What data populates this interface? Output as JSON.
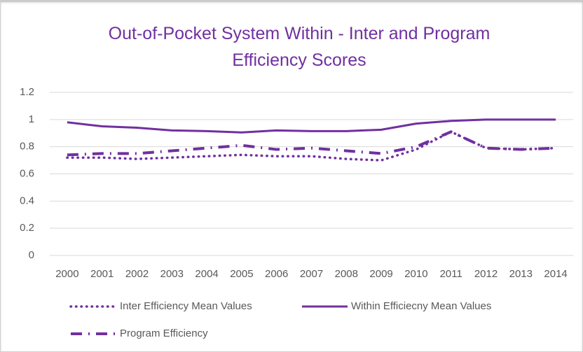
{
  "chart_data": {
    "type": "line",
    "title": "Out-of-Pocket System Within - Inter and Program Efficiency Scores",
    "categories": [
      "2000",
      "2001",
      "2002",
      "2003",
      "2004",
      "2005",
      "2006",
      "2007",
      "2008",
      "2009",
      "2010",
      "2011",
      "2012",
      "2013",
      "2014"
    ],
    "series": [
      {
        "name": "Inter Efficiency Mean Values",
        "color": "#7030a0",
        "line_style": "dotted",
        "values": [
          0.72,
          0.72,
          0.71,
          0.72,
          0.73,
          0.74,
          0.73,
          0.73,
          0.71,
          0.7,
          0.78,
          0.91,
          0.79,
          0.78,
          0.79
        ]
      },
      {
        "name": "Within Efficiecny Mean Values",
        "color": "#7030a0",
        "line_style": "solid",
        "values": [
          0.98,
          0.95,
          0.94,
          0.92,
          0.915,
          0.905,
          0.92,
          0.915,
          0.915,
          0.925,
          0.97,
          0.99,
          1.0,
          1.0,
          1.0
        ]
      },
      {
        "name": "Program Efficiency",
        "color": "#7030a0",
        "line_style": "dash-dot",
        "values": [
          0.74,
          0.75,
          0.75,
          0.77,
          0.79,
          0.81,
          0.78,
          0.79,
          0.77,
          0.75,
          0.8,
          0.91,
          0.79,
          0.78,
          0.79
        ]
      }
    ],
    "ylim": [
      0,
      1.2
    ],
    "yticks": [
      0,
      0.2,
      0.4,
      0.6,
      0.8,
      1,
      1.2
    ],
    "grid": true,
    "legend": "bottom"
  }
}
